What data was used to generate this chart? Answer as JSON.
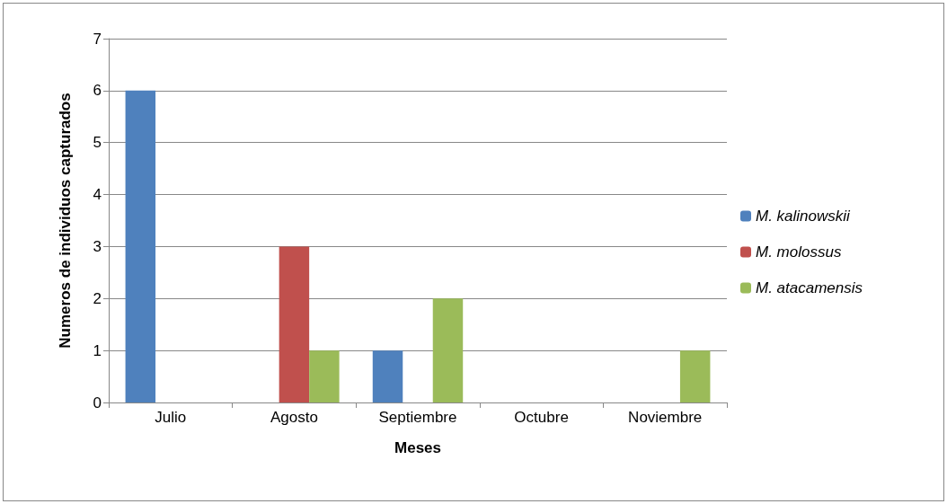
{
  "chart_data": {
    "type": "bar",
    "xlabel": "Meses",
    "ylabel": "Numeros de individuos capturados",
    "categories": [
      "Julio",
      "Agosto",
      "Septiembre",
      "Octubre",
      "Noviembre"
    ],
    "series": [
      {
        "name": "M. kalinowskii",
        "color": "#4f81bd",
        "values": [
          6,
          0,
          1,
          0,
          0
        ]
      },
      {
        "name": "M. molossus",
        "color": "#c0504d",
        "values": [
          0,
          3,
          0,
          0,
          0
        ]
      },
      {
        "name": "M. atacamensis",
        "color": "#9bbb59",
        "values": [
          0,
          1,
          2,
          0,
          1
        ]
      }
    ],
    "ylim": [
      0,
      7
    ],
    "yticks": [
      0,
      1,
      2,
      3,
      4,
      5,
      6,
      7
    ],
    "grid": "y",
    "legend": "right"
  }
}
